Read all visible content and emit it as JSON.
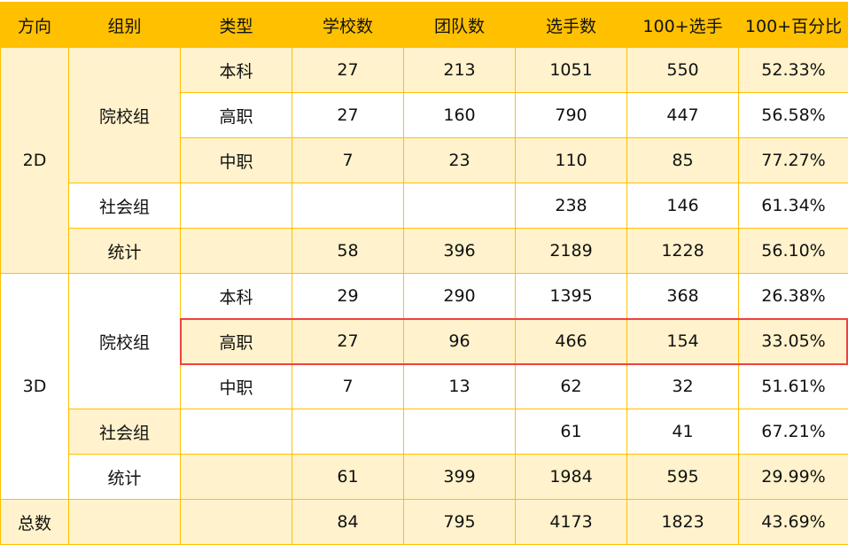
{
  "colors": {
    "header": "#FFC000",
    "row_light": "#FFF2CC",
    "border": "#FFC000",
    "highlight": "#F04040"
  },
  "headers": [
    "方向",
    "组别",
    "类型",
    "学校数",
    "团队数",
    "选手数",
    "100+选手",
    "100+百分比"
  ],
  "rows": [
    {
      "direction": "2D",
      "group": "院校组",
      "type": "本科",
      "values": [
        "27",
        "213",
        "1051",
        "550",
        "52.33%"
      ]
    },
    {
      "type": "高职",
      "values": [
        "27",
        "160",
        "790",
        "447",
        "56.58%"
      ]
    },
    {
      "type": "中职",
      "values": [
        "7",
        "23",
        "110",
        "85",
        "77.27%"
      ]
    },
    {
      "group": "社会组",
      "type": "",
      "values": [
        "",
        "",
        "238",
        "146",
        "61.34%"
      ]
    },
    {
      "group": "统计",
      "type": "",
      "values": [
        "58",
        "396",
        "2189",
        "1228",
        "56.10%"
      ]
    },
    {
      "direction": "3D",
      "group": "院校组",
      "type": "本科",
      "values": [
        "29",
        "290",
        "1395",
        "368",
        "26.38%"
      ]
    },
    {
      "type": "高职",
      "values": [
        "27",
        "96",
        "466",
        "154",
        "33.05%"
      ],
      "highlighted": true
    },
    {
      "type": "中职",
      "values": [
        "7",
        "13",
        "62",
        "32",
        "51.61%"
      ]
    },
    {
      "group": "社会组",
      "type": "",
      "values": [
        "",
        "",
        "61",
        "41",
        "67.21%"
      ]
    },
    {
      "group": "统计",
      "type": "",
      "values": [
        "61",
        "399",
        "1984",
        "595",
        "29.99%"
      ]
    },
    {
      "direction": "总数",
      "group": "",
      "type": "",
      "values": [
        "84",
        "795",
        "4173",
        "1823",
        "43.69%"
      ]
    }
  ]
}
